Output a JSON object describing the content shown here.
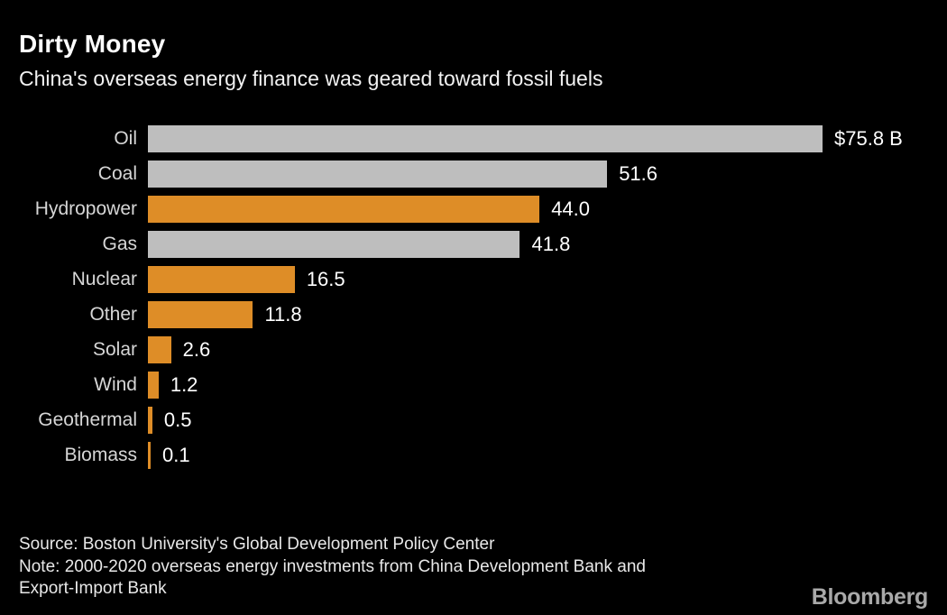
{
  "header": {
    "title": "Dirty Money",
    "subtitle": "China's overseas energy finance was geared toward fossil fuels"
  },
  "chart_data": {
    "type": "bar",
    "orientation": "horizontal",
    "title": "Dirty Money",
    "subtitle": "China's overseas energy finance was geared toward fossil fuels",
    "unit": "billions of USD",
    "categories": [
      "Oil",
      "Coal",
      "Hydropower",
      "Gas",
      "Nuclear",
      "Other",
      "Solar",
      "Wind",
      "Geothermal",
      "Biomass"
    ],
    "values": [
      75.8,
      51.6,
      44.0,
      41.8,
      16.5,
      11.8,
      2.6,
      1.2,
      0.5,
      0.1
    ],
    "value_labels": [
      "$75.8 B",
      "51.6",
      "44.0",
      "41.8",
      "16.5",
      "11.8",
      "2.6",
      "1.2",
      "0.5",
      "0.1"
    ],
    "bar_colors": [
      "gray",
      "gray",
      "orange",
      "gray",
      "orange",
      "orange",
      "orange",
      "orange",
      "orange",
      "orange"
    ],
    "colors": {
      "gray": "#bebebe",
      "orange": "#de8d27"
    },
    "xlim": [
      0,
      75.8
    ],
    "grid": false,
    "legend": null
  },
  "footer": {
    "source": "Source: Boston University's Global Development Policy Center",
    "note_lines": [
      "Note: 2000-2020 overseas energy investments from China Development Bank and",
      "Export-Import Bank"
    ],
    "note": "Note: 2000-2020 overseas energy investments from China Development Bank and Export-Import Bank",
    "brand": "Bloomberg"
  }
}
